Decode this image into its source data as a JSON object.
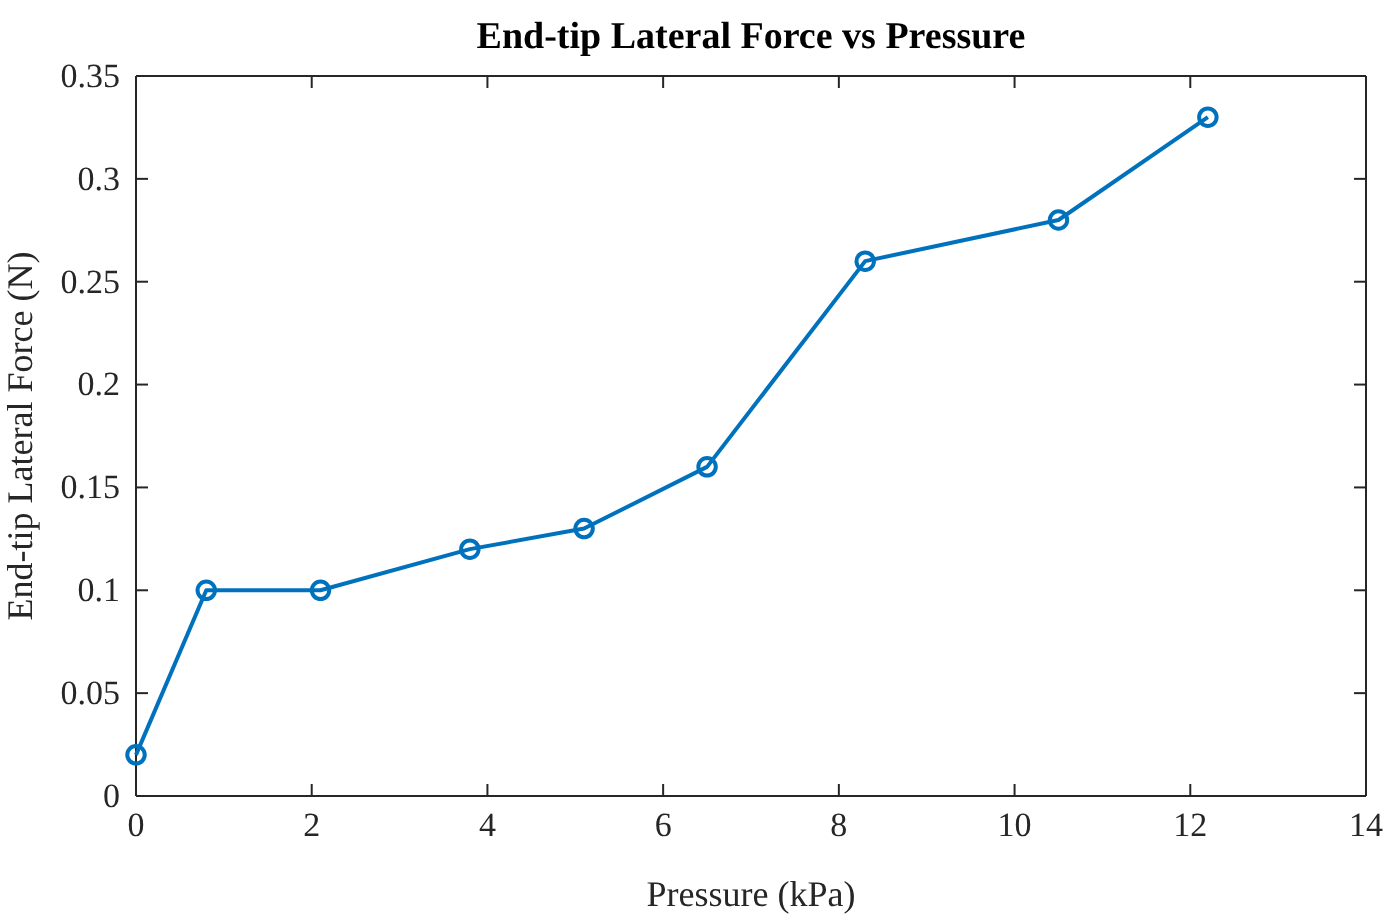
{
  "chart_data": {
    "type": "line",
    "title": "End-tip Lateral Force vs Pressure",
    "xlabel": "Pressure (kPa)",
    "ylabel": "End-tip Lateral Force (N)",
    "x": [
      0,
      0.8,
      2.1,
      3.8,
      5.1,
      6.5,
      8.3,
      10.5,
      12.2
    ],
    "series": [
      {
        "color": "#0072bd",
        "values": [
          0.02,
          0.1,
          0.1,
          0.12,
          0.13,
          0.16,
          0.26,
          0.28,
          0.33
        ]
      }
    ],
    "xlim": [
      0,
      14
    ],
    "xticks": [
      0,
      2,
      4,
      6,
      8,
      10,
      12,
      14
    ],
    "ylim": [
      0,
      0.35
    ],
    "yticks": [
      0,
      0.05,
      0.1,
      0.15,
      0.2,
      0.25,
      0.3,
      0.35
    ],
    "grid": false,
    "marker": "circle",
    "line_style": "solid"
  }
}
